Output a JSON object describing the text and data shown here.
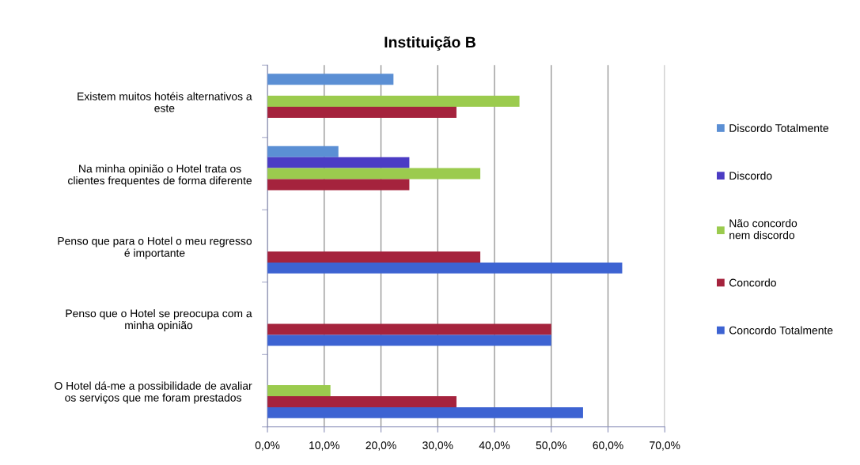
{
  "chart_data": {
    "type": "bar",
    "orientation": "horizontal",
    "title": "Instituição B",
    "categories": [
      "Existem muitos hotéis alternativos a\neste",
      "Na minha opinião o Hotel trata os\nclientes frequentes de forma diferente",
      "Penso que para o Hotel o meu regresso\né importante",
      "Penso que o Hotel se preocupa com a\nminha opinião",
      "O Hotel dá-me a possibilidade de avaliar\nos serviços que me foram prestados"
    ],
    "series": [
      {
        "name": "Discordo Totalmente",
        "color": "#5b8fd4",
        "values": [
          22.2,
          12.5,
          null,
          null,
          null
        ]
      },
      {
        "name": "Discordo",
        "color": "#4b3cc4",
        "values": [
          null,
          25.0,
          null,
          null,
          null
        ]
      },
      {
        "name": "Não concordo\nnem discordo",
        "color": "#9bcb4e",
        "values": [
          44.4,
          37.5,
          null,
          null,
          11.1
        ]
      },
      {
        "name": "Concordo",
        "color": "#a5233d",
        "values": [
          33.3,
          25.0,
          37.5,
          50.0,
          33.3
        ]
      },
      {
        "name": "Concordo Totalmente",
        "color": "#3d63d2",
        "values": [
          null,
          null,
          62.5,
          50.0,
          55.6
        ]
      }
    ],
    "xlim": [
      0,
      70
    ],
    "xticks": [
      {
        "value": 0,
        "label": "0,0%"
      },
      {
        "value": 10,
        "label": "10,0%"
      },
      {
        "value": 20,
        "label": "20,0%"
      },
      {
        "value": 30,
        "label": "30,0%"
      },
      {
        "value": 40,
        "label": "40,0%"
      },
      {
        "value": 50,
        "label": "50,0%"
      },
      {
        "value": 60,
        "label": "60,0%"
      },
      {
        "value": 70,
        "label": "70,0%"
      }
    ],
    "grid": "x",
    "legend": "right"
  }
}
